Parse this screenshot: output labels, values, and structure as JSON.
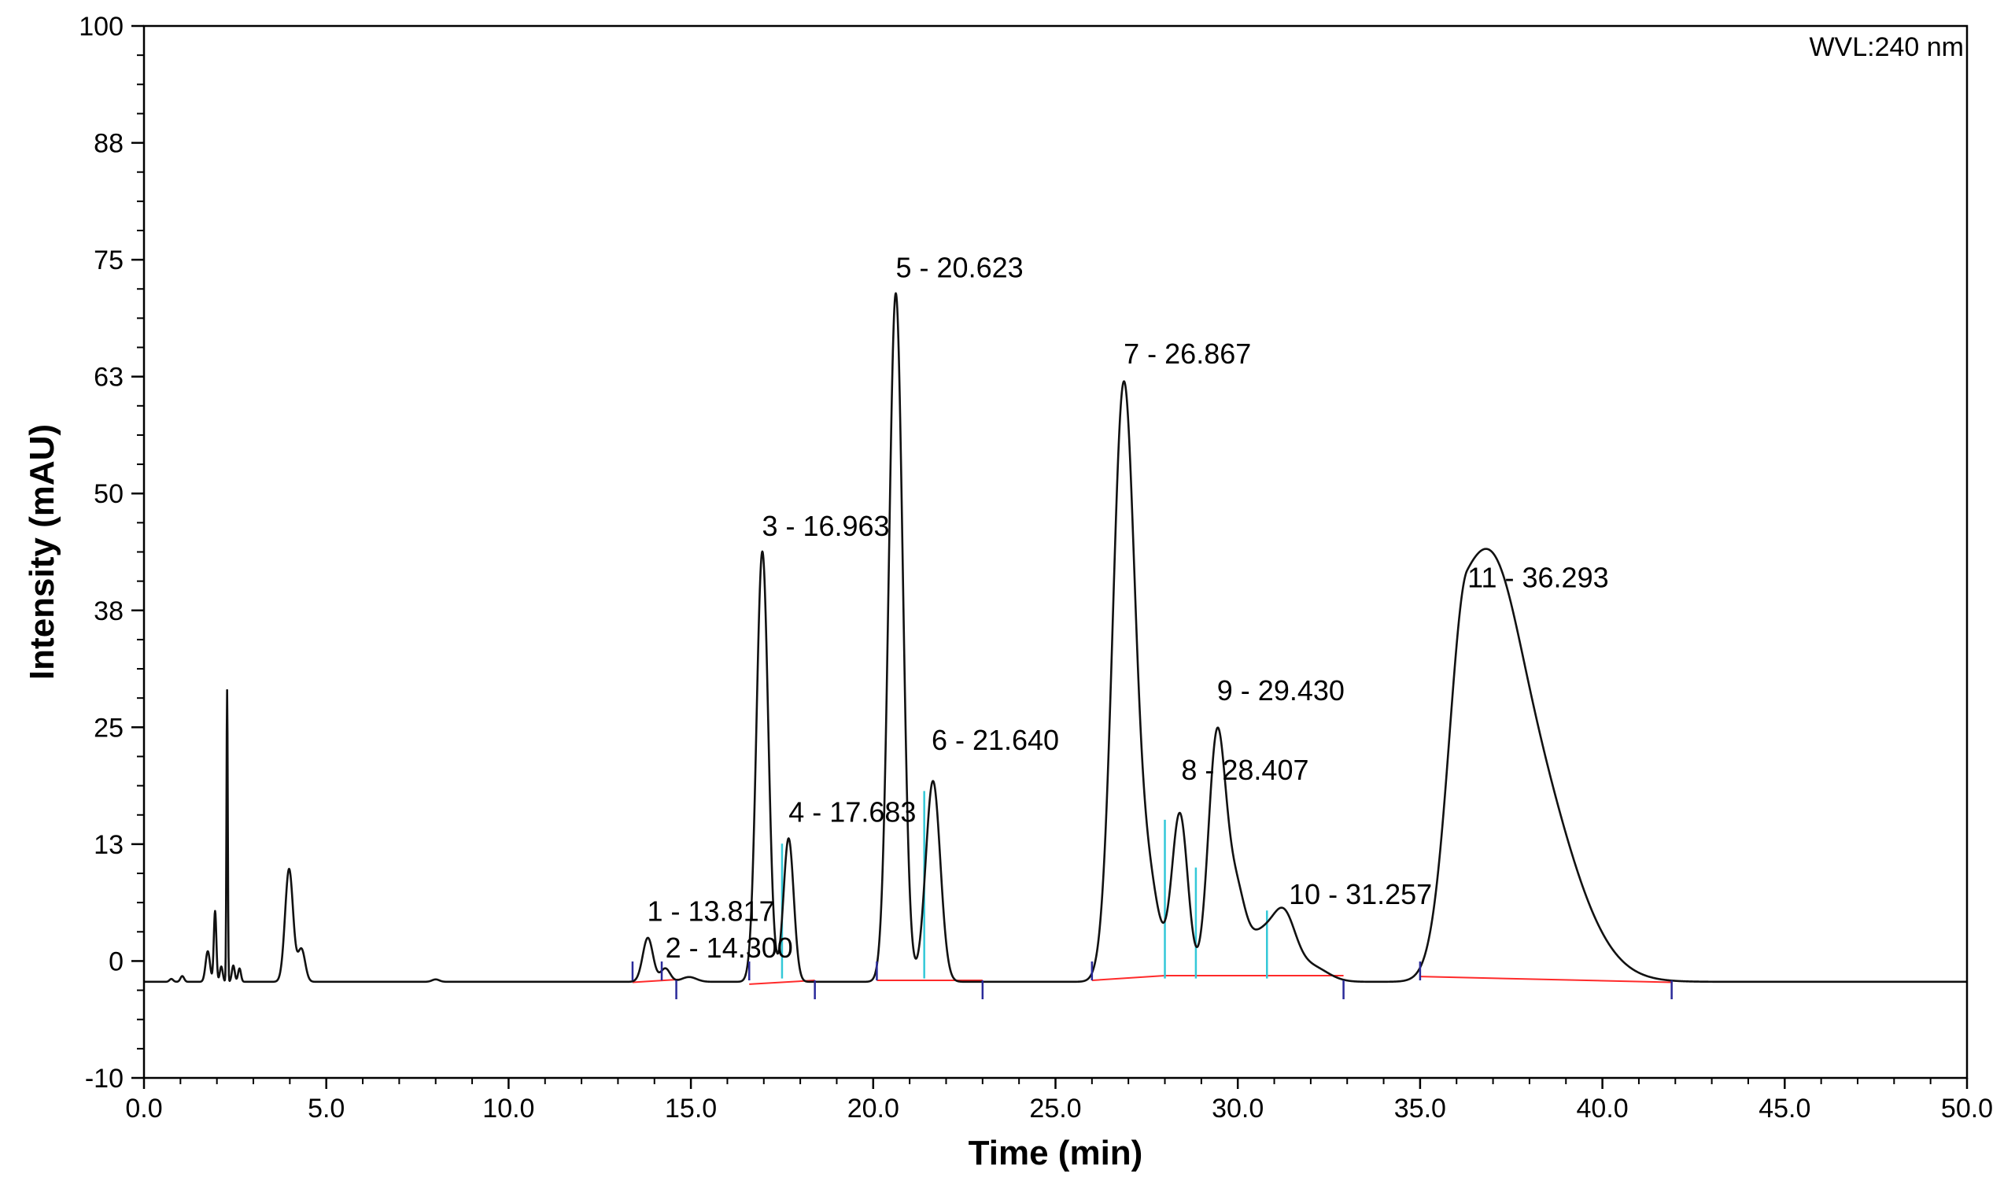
{
  "chart_data": {
    "type": "line",
    "title": "",
    "annotation": "WVL:240 nm",
    "xlabel": "Time (min)",
    "ylabel": "Intensity (mAU)",
    "xlim": [
      0.0,
      50.0
    ],
    "ylim": [
      -10,
      100
    ],
    "xticks": [
      0.0,
      5.0,
      10.0,
      15.0,
      20.0,
      25.0,
      30.0,
      35.0,
      40.0,
      45.0,
      50.0
    ],
    "xtick_labels": [
      "0.0",
      "5.0",
      "10.0",
      "15.0",
      "20.0",
      "25.0",
      "30.0",
      "35.0",
      "40.0",
      "45.0",
      "50.0"
    ],
    "yticks": [
      -10,
      0,
      13,
      25,
      38,
      50,
      63,
      75,
      88,
      100
    ],
    "ytick_labels": [
      "-10",
      "0",
      "13",
      "25",
      "38",
      "50",
      "63",
      "75",
      "88",
      "100"
    ],
    "grid": false,
    "colors": {
      "trace": "#111111",
      "baseline": "#ff2a2a",
      "drop_line": "#33c8d8",
      "integration_mark": "#2a2a9a"
    },
    "trace": {
      "baseline": 0.05,
      "peaks": [
        {
          "t": 0.75,
          "h": 0.3,
          "w": 0.05
        },
        {
          "t": 1.05,
          "h": 0.6,
          "w": 0.05
        },
        {
          "t": 1.75,
          "h": 3.2,
          "w": 0.06
        },
        {
          "t": 1.95,
          "h": 7.4,
          "w": 0.035
        },
        {
          "t": 2.12,
          "h": 1.6,
          "w": 0.04
        },
        {
          "t": 2.28,
          "h": 30.5,
          "w": 0.018
        },
        {
          "t": 2.45,
          "h": 1.7,
          "w": 0.04
        },
        {
          "t": 2.62,
          "h": 1.4,
          "w": 0.04
        },
        {
          "t": 3.98,
          "h": 11.8,
          "w": 0.11
        },
        {
          "t": 4.32,
          "h": 3.4,
          "w": 0.1
        },
        {
          "t": 8.0,
          "h": 0.25,
          "w": 0.1
        },
        {
          "t": 13.82,
          "h": 4.6,
          "w": 0.14
        },
        {
          "t": 14.3,
          "h": 1.4,
          "w": 0.13
        },
        {
          "t": 14.95,
          "h": 0.5,
          "w": 0.2
        },
        {
          "t": 16.96,
          "h": 45.0,
          "w": 0.16
        },
        {
          "t": 17.68,
          "h": 15.0,
          "w": 0.14
        },
        {
          "t": 20.62,
          "h": 72.0,
          "w": 0.19
        },
        {
          "t": 21.64,
          "h": 21.0,
          "w": 0.2
        },
        {
          "t": 26.87,
          "h": 62.0,
          "w": 0.3
        },
        {
          "t": 27.55,
          "h": 10.0,
          "w": 0.3
        },
        {
          "t": 28.41,
          "h": 17.5,
          "w": 0.22
        },
        {
          "t": 29.43,
          "h": 25.5,
          "w": 0.24
        },
        {
          "t": 29.95,
          "h": 8.5,
          "w": 0.25
        },
        {
          "t": 30.6,
          "h": 4.5,
          "w": 0.35
        },
        {
          "t": 31.26,
          "h": 6.5,
          "w": 0.32
        },
        {
          "t": 32.0,
          "h": 1.6,
          "w": 0.45
        },
        {
          "t": 36.29,
          "h": 39.5,
          "w": 0.5,
          "tail": 1.6
        },
        {
          "t": 37.1,
          "h": 6.0,
          "w": 0.6
        },
        {
          "t": 38.4,
          "h": 7.0,
          "w": 1.1
        }
      ]
    },
    "baseline_segments": [
      {
        "t0": 13.4,
        "y0": 0.0,
        "t1": 14.7,
        "y1": 0.3
      },
      {
        "t0": 16.6,
        "y0": -0.2,
        "t1": 18.4,
        "y1": 0.2
      },
      {
        "t0": 20.1,
        "y0": 0.2,
        "t1": 23.0,
        "y1": 0.2
      },
      {
        "t0": 26.0,
        "y0": 0.2,
        "t1": 28.0,
        "y1": 0.7
      },
      {
        "t0": 28.0,
        "y0": 0.7,
        "t1": 32.9,
        "y1": 0.7
      },
      {
        "t0": 35.0,
        "y0": 0.6,
        "t1": 41.9,
        "y1": 0.0
      }
    ],
    "drop_lines": [
      {
        "t": 17.5,
        "y_top": 14.5
      },
      {
        "t": 21.4,
        "y_top": 20.0
      },
      {
        "t": 28.0,
        "y_top": 17.0
      },
      {
        "t": 28.85,
        "y_top": 12.0
      },
      {
        "t": 30.8,
        "y_top": 7.5
      }
    ],
    "integration_marks": [
      {
        "t": 13.4,
        "pos": "above"
      },
      {
        "t": 14.2,
        "pos": "above"
      },
      {
        "t": 14.6,
        "pos": "below"
      },
      {
        "t": 16.6,
        "pos": "above"
      },
      {
        "t": 18.4,
        "pos": "below"
      },
      {
        "t": 20.1,
        "pos": "above"
      },
      {
        "t": 23.0,
        "pos": "below"
      },
      {
        "t": 26.0,
        "pos": "above"
      },
      {
        "t": 32.9,
        "pos": "below"
      },
      {
        "t": 35.0,
        "pos": "above"
      },
      {
        "t": 41.9,
        "pos": "below"
      }
    ],
    "peak_labels": [
      {
        "text": "1 - 13.817",
        "t": 13.8,
        "y": 6.4
      },
      {
        "text": "2 - 14.300",
        "t": 14.3,
        "y": 2.6
      },
      {
        "text": "3 - 16.963",
        "t": 16.95,
        "y": 46.7
      },
      {
        "text": "4 - 17.683",
        "t": 17.68,
        "y": 16.8
      },
      {
        "text": "5 - 20.623",
        "t": 20.62,
        "y": 73.7
      },
      {
        "text": "6 - 21.640",
        "t": 21.6,
        "y": 24.3
      },
      {
        "text": "7 - 26.867",
        "t": 26.87,
        "y": 64.7
      },
      {
        "text": "8 - 28.407",
        "t": 28.45,
        "y": 21.2
      },
      {
        "text": "9 - 29.430",
        "t": 29.43,
        "y": 29.5
      },
      {
        "text": "10 - 31.257",
        "t": 31.4,
        "y": 8.2
      },
      {
        "text": "11 - 36.293",
        "t": 36.3,
        "y": 41.3
      }
    ]
  }
}
